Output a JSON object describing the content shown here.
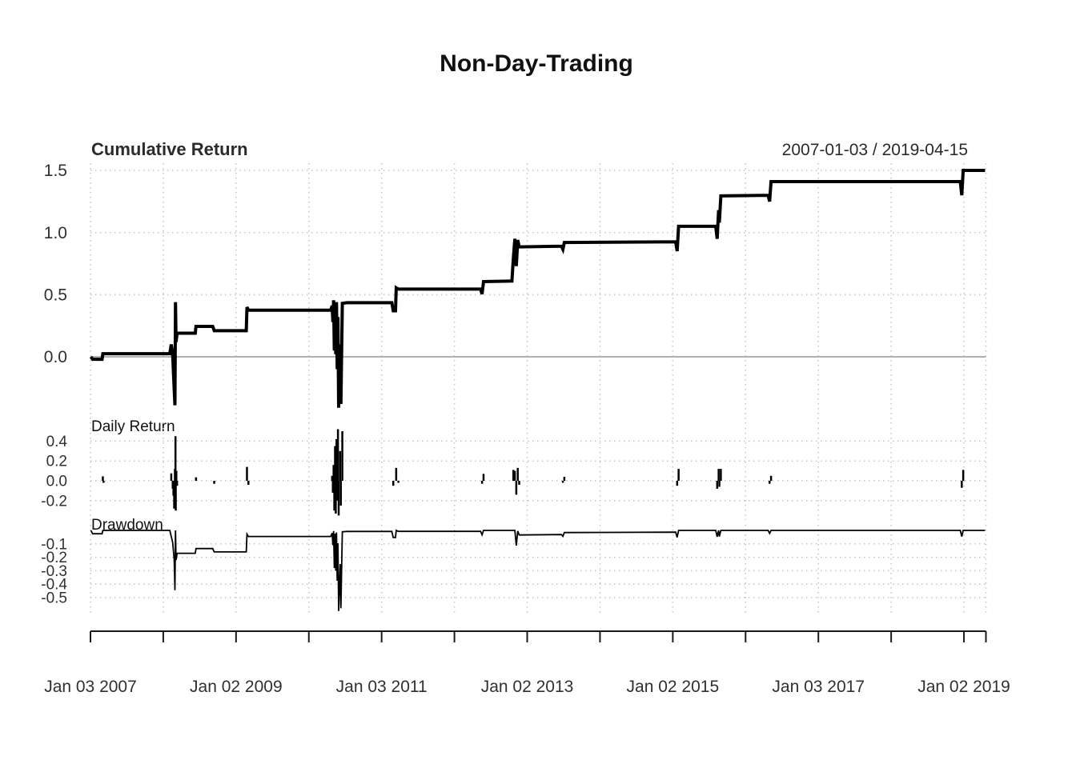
{
  "title": "Non-Day-Trading",
  "panels": {
    "cumulative": {
      "label": "Cumulative Return",
      "date_range": "2007-01-03 / 2019-04-15",
      "yticks": [
        {
          "v": 1.5,
          "label": "1.5"
        },
        {
          "v": 1.0,
          "label": "1.0"
        },
        {
          "v": 0.5,
          "label": "0.5"
        },
        {
          "v": 0.0,
          "label": "0.0"
        }
      ]
    },
    "daily": {
      "label": "Daily Return",
      "yticks": [
        {
          "v": 0.4,
          "label": "0.4"
        },
        {
          "v": 0.2,
          "label": "0.2"
        },
        {
          "v": 0.0,
          "label": "0.0"
        },
        {
          "v": -0.2,
          "label": "-0.2"
        }
      ]
    },
    "drawdown": {
      "label": "Drawdown",
      "yticks": [
        {
          "v": -0.1,
          "label": "-0.1"
        },
        {
          "v": -0.2,
          "label": "-0.2"
        },
        {
          "v": -0.3,
          "label": "-0.3"
        },
        {
          "v": -0.4,
          "label": "-0.4"
        },
        {
          "v": -0.5,
          "label": "-0.5"
        }
      ]
    }
  },
  "x_axis": {
    "start": "2007-01-03",
    "end": "2019-04-15",
    "tick_years": [
      2007,
      2008,
      2009,
      2010,
      2011,
      2012,
      2013,
      2014,
      2015,
      2016,
      2017,
      2018,
      2019
    ],
    "labels": [
      {
        "year": 2007,
        "text": "Jan 03 2007"
      },
      {
        "year": 2009,
        "text": "Jan 02 2009"
      },
      {
        "year": 2011,
        "text": "Jan 03 2011"
      },
      {
        "year": 2013,
        "text": "Jan 02 2013"
      },
      {
        "year": 2015,
        "text": "Jan 02 2015"
      },
      {
        "year": 2017,
        "text": "Jan 03 2017"
      },
      {
        "year": 2019,
        "text": "Jan 02 2019"
      }
    ]
  },
  "colors": {
    "series": "#000000",
    "grid_dotted": "#c4c4c4",
    "zero_line": "#b0b0b0",
    "axis": "#1a1a1a",
    "tick_text": "#303030"
  },
  "chart_data": [
    {
      "type": "line",
      "panel": "cumulative",
      "name": "Cumulative Return",
      "x_unit": "decimal_year",
      "x_domain": [
        2007.005,
        2019.29
      ],
      "ylim": [
        -0.5,
        1.55
      ],
      "stroke_width": 4,
      "points": [
        [
          2007.005,
          0.0
        ],
        [
          2007.03,
          -0.02
        ],
        [
          2007.16,
          -0.02
        ],
        [
          2007.17,
          0.025
        ],
        [
          2008.09,
          0.025
        ],
        [
          2008.11,
          0.1
        ],
        [
          2008.13,
          0.02
        ],
        [
          2008.14,
          -0.12
        ],
        [
          2008.16,
          -0.39
        ],
        [
          2008.168,
          0.44
        ],
        [
          2008.176,
          0.12
        ],
        [
          2008.19,
          0.19
        ],
        [
          2008.44,
          0.19
        ],
        [
          2008.45,
          0.245
        ],
        [
          2008.68,
          0.245
        ],
        [
          2008.7,
          0.21
        ],
        [
          2009.14,
          0.21
        ],
        [
          2009.15,
          0.4
        ],
        [
          2009.17,
          0.375
        ],
        [
          2010.3,
          0.375
        ],
        [
          2010.32,
          0.41
        ],
        [
          2010.33,
          0.28
        ],
        [
          2010.34,
          0.455
        ],
        [
          2010.35,
          0.05
        ],
        [
          2010.36,
          0.42
        ],
        [
          2010.37,
          0.02
        ],
        [
          2010.38,
          0.44
        ],
        [
          2010.39,
          -0.1
        ],
        [
          2010.4,
          0.32
        ],
        [
          2010.41,
          -0.41
        ],
        [
          2010.43,
          0.1
        ],
        [
          2010.44,
          -0.38
        ],
        [
          2010.46,
          0.43
        ],
        [
          2010.52,
          0.435
        ],
        [
          2011.14,
          0.435
        ],
        [
          2011.16,
          0.37
        ],
        [
          2011.19,
          0.37
        ],
        [
          2011.2,
          0.555
        ],
        [
          2011.23,
          0.545
        ],
        [
          2012.36,
          0.545
        ],
        [
          2012.38,
          0.505
        ],
        [
          2012.4,
          0.605
        ],
        [
          2012.79,
          0.61
        ],
        [
          2012.81,
          0.79
        ],
        [
          2012.83,
          0.95
        ],
        [
          2012.85,
          0.73
        ],
        [
          2012.87,
          0.94
        ],
        [
          2012.89,
          0.885
        ],
        [
          2013.47,
          0.89
        ],
        [
          2013.49,
          0.865
        ],
        [
          2013.51,
          0.92
        ],
        [
          2015.04,
          0.925
        ],
        [
          2015.06,
          0.85
        ],
        [
          2015.08,
          1.05
        ],
        [
          2015.59,
          1.05
        ],
        [
          2015.61,
          0.95
        ],
        [
          2015.63,
          1.18
        ],
        [
          2015.64,
          1.08
        ],
        [
          2015.66,
          1.295
        ],
        [
          2016.31,
          1.3
        ],
        [
          2016.33,
          1.25
        ],
        [
          2016.35,
          1.41
        ],
        [
          2018.95,
          1.41
        ],
        [
          2018.97,
          1.3
        ],
        [
          2018.99,
          1.5
        ],
        [
          2019.29,
          1.5
        ]
      ]
    },
    {
      "type": "bar",
      "panel": "daily",
      "name": "Daily Return",
      "x_unit": "decimal_year",
      "ylim": [
        -0.42,
        0.55
      ],
      "stroke_width": 2.5,
      "points": [
        [
          2007.17,
          0.045
        ],
        [
          2007.18,
          -0.02
        ],
        [
          2008.11,
          0.075
        ],
        [
          2008.13,
          -0.08
        ],
        [
          2008.14,
          -0.15
        ],
        [
          2008.15,
          -0.28
        ],
        [
          2008.16,
          0.12
        ],
        [
          2008.168,
          0.45
        ],
        [
          2008.172,
          -0.3
        ],
        [
          2008.18,
          0.1
        ],
        [
          2008.19,
          -0.05
        ],
        [
          2008.45,
          0.035
        ],
        [
          2008.7,
          -0.03
        ],
        [
          2009.15,
          0.14
        ],
        [
          2009.17,
          -0.04
        ],
        [
          2010.32,
          0.05
        ],
        [
          2010.33,
          -0.12
        ],
        [
          2010.34,
          0.16
        ],
        [
          2010.35,
          -0.3
        ],
        [
          2010.36,
          0.35
        ],
        [
          2010.37,
          -0.33
        ],
        [
          2010.38,
          0.42
        ],
        [
          2010.39,
          -0.2
        ],
        [
          2010.4,
          0.52
        ],
        [
          2010.41,
          -0.35
        ],
        [
          2010.43,
          0.3
        ],
        [
          2010.44,
          -0.25
        ],
        [
          2010.46,
          0.5
        ],
        [
          2011.16,
          -0.05
        ],
        [
          2011.2,
          0.13
        ],
        [
          2011.23,
          -0.02
        ],
        [
          2012.38,
          -0.03
        ],
        [
          2012.4,
          0.07
        ],
        [
          2012.81,
          0.11
        ],
        [
          2012.83,
          0.1
        ],
        [
          2012.85,
          -0.14
        ],
        [
          2012.87,
          0.13
        ],
        [
          2012.89,
          -0.04
        ],
        [
          2013.49,
          -0.02
        ],
        [
          2013.51,
          0.04
        ],
        [
          2015.06,
          -0.05
        ],
        [
          2015.08,
          0.12
        ],
        [
          2015.61,
          -0.08
        ],
        [
          2015.63,
          0.12
        ],
        [
          2015.64,
          -0.06
        ],
        [
          2015.66,
          0.12
        ],
        [
          2016.33,
          -0.03
        ],
        [
          2016.35,
          0.05
        ],
        [
          2018.97,
          -0.07
        ],
        [
          2018.99,
          0.11
        ]
      ]
    },
    {
      "type": "line",
      "panel": "drawdown",
      "name": "Drawdown",
      "x_unit": "decimal_year",
      "ylim": [
        -0.63,
        0.02
      ],
      "stroke_width": 1.8,
      "points": [
        [
          2007.005,
          0
        ],
        [
          2007.03,
          -0.025
        ],
        [
          2007.16,
          -0.025
        ],
        [
          2007.17,
          0
        ],
        [
          2008.09,
          0
        ],
        [
          2008.13,
          -0.09
        ],
        [
          2008.15,
          -0.22
        ],
        [
          2008.16,
          -0.445
        ],
        [
          2008.168,
          0
        ],
        [
          2008.176,
          -0.22
        ],
        [
          2008.19,
          -0.17
        ],
        [
          2008.44,
          -0.17
        ],
        [
          2008.45,
          -0.135
        ],
        [
          2008.68,
          -0.135
        ],
        [
          2008.7,
          -0.16
        ],
        [
          2009.14,
          -0.16
        ],
        [
          2009.15,
          -0.028
        ],
        [
          2009.17,
          -0.045
        ],
        [
          2010.3,
          -0.045
        ],
        [
          2010.32,
          -0.02
        ],
        [
          2010.33,
          -0.11
        ],
        [
          2010.34,
          -0.005
        ],
        [
          2010.35,
          -0.28
        ],
        [
          2010.36,
          -0.025
        ],
        [
          2010.37,
          -0.3
        ],
        [
          2010.38,
          -0.015
        ],
        [
          2010.39,
          -0.375
        ],
        [
          2010.4,
          -0.095
        ],
        [
          2010.41,
          -0.6
        ],
        [
          2010.43,
          -0.25
        ],
        [
          2010.44,
          -0.58
        ],
        [
          2010.46,
          -0.01
        ],
        [
          2010.52,
          -0.008
        ],
        [
          2011.14,
          -0.008
        ],
        [
          2011.16,
          -0.053
        ],
        [
          2011.19,
          -0.053
        ],
        [
          2011.2,
          0
        ],
        [
          2011.23,
          -0.007
        ],
        [
          2012.36,
          -0.007
        ],
        [
          2012.38,
          -0.033
        ],
        [
          2012.4,
          0
        ],
        [
          2012.79,
          0
        ],
        [
          2012.83,
          0
        ],
        [
          2012.85,
          -0.113
        ],
        [
          2012.87,
          -0.005
        ],
        [
          2012.89,
          -0.034
        ],
        [
          2013.47,
          -0.031
        ],
        [
          2013.49,
          -0.044
        ],
        [
          2013.51,
          -0.016
        ],
        [
          2015.04,
          -0.013
        ],
        [
          2015.06,
          -0.052
        ],
        [
          2015.08,
          0
        ],
        [
          2015.59,
          0
        ],
        [
          2015.61,
          -0.047
        ],
        [
          2015.63,
          0
        ],
        [
          2015.64,
          -0.046
        ],
        [
          2015.66,
          0
        ],
        [
          2016.31,
          0
        ],
        [
          2016.33,
          -0.022
        ],
        [
          2016.35,
          0
        ],
        [
          2018.95,
          0
        ],
        [
          2018.97,
          -0.046
        ],
        [
          2018.99,
          0
        ],
        [
          2019.29,
          0
        ]
      ]
    }
  ]
}
